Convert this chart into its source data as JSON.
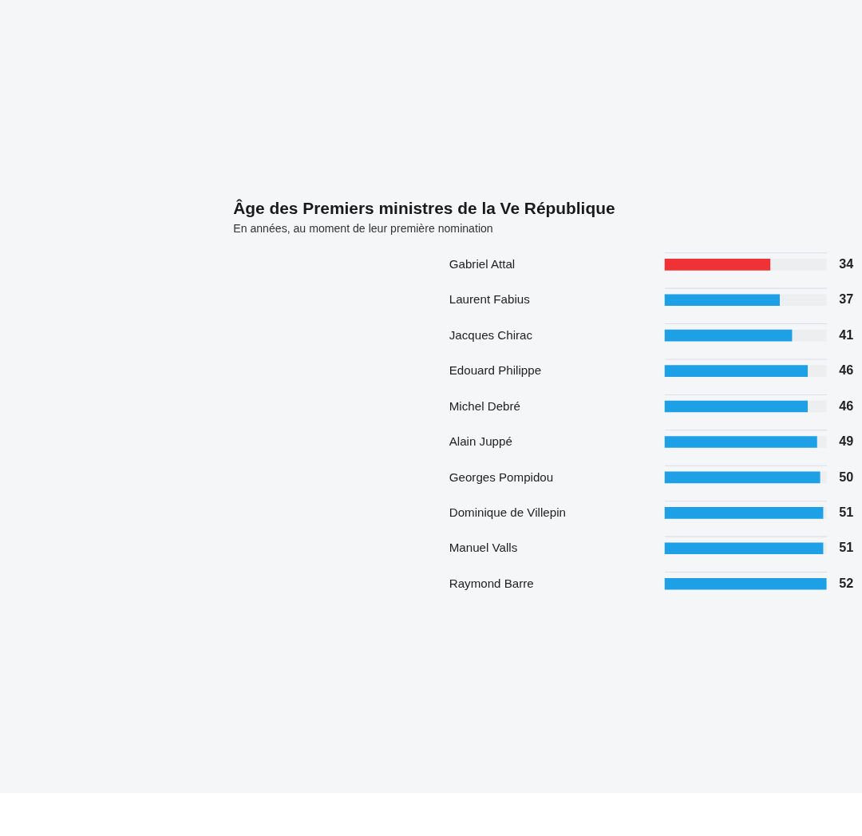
{
  "chart_data": {
    "type": "bar",
    "orientation": "horizontal",
    "stacked": true,
    "title": "Âge des Premiers ministres de la Ve République",
    "subtitle": "En années, au moment de leur première nomination",
    "categories": [
      "Gabriel Attal",
      "Laurent Fabius",
      "Jacques Chirac",
      "Edouard Philippe",
      "Michel Debré",
      "Alain Juppé",
      "Georges Pompidou",
      "Dominique de Villepin",
      "Manuel Valls",
      "Raymond Barre"
    ],
    "series": [
      {
        "colors": [
          "#f03237",
          "#1ea0e6",
          "#1ea0e6",
          "#1ea0e6",
          "#1ea0e6",
          "#1ea0e6",
          "#1ea0e6",
          "#1ea0e6",
          "#1ea0e6",
          "#1ea0e6"
        ],
        "values": [
          34,
          37,
          41,
          46,
          46,
          49,
          50,
          51,
          51,
          52
        ],
        "value_labels": [
          "34",
          "37",
          "41",
          "46",
          "46",
          "49",
          "50",
          "51",
          "51",
          "52"
        ]
      },
      {
        "color": "#eceef0",
        "values": [
          18,
          15,
          11,
          6,
          6,
          3,
          2,
          1,
          1,
          0
        ]
      }
    ],
    "grid": "y"
  }
}
